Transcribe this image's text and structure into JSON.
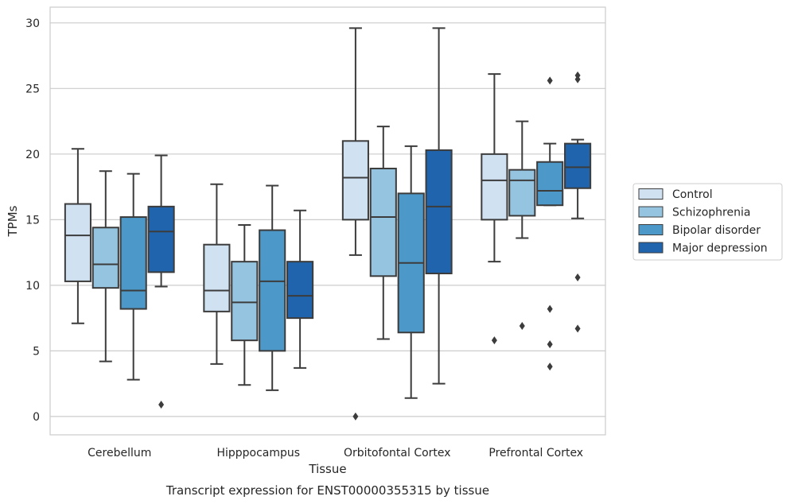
{
  "chart_data": {
    "type": "boxplot",
    "title": "",
    "caption": "Transcript expression for ENST00000355315 by tissue",
    "xlabel": "Tissue",
    "ylabel": "TPMs",
    "ylim": [
      -1.4,
      31.2
    ],
    "yticks": [
      0,
      5,
      10,
      15,
      20,
      25,
      30
    ],
    "grid": true,
    "legend_position": "right",
    "categories": [
      "Cerebellum",
      "Hipppocampus",
      "Orbitofontal Cortex",
      "Prefrontal Cortex"
    ],
    "series": [
      {
        "name": "Control",
        "color": "#d0e1f2",
        "boxes": [
          {
            "whislo": 7.1,
            "q1": 10.3,
            "median": 13.8,
            "q3": 16.2,
            "whishi": 20.4,
            "fliers": []
          },
          {
            "whislo": 4.0,
            "q1": 8.0,
            "median": 9.6,
            "q3": 13.1,
            "whishi": 17.7,
            "fliers": []
          },
          {
            "whislo": 12.3,
            "q1": 15.0,
            "median": 18.2,
            "q3": 21.0,
            "whishi": 29.6,
            "fliers": [
              0.0
            ]
          },
          {
            "whislo": 11.8,
            "q1": 15.0,
            "median": 18.0,
            "q3": 20.0,
            "whishi": 26.1,
            "fliers": [
              5.8
            ]
          }
        ]
      },
      {
        "name": "Schizophrenia",
        "color": "#94c4df",
        "boxes": [
          {
            "whislo": 4.2,
            "q1": 9.8,
            "median": 11.6,
            "q3": 14.4,
            "whishi": 18.7,
            "fliers": []
          },
          {
            "whislo": 2.4,
            "q1": 5.8,
            "median": 8.7,
            "q3": 11.8,
            "whishi": 14.6,
            "fliers": []
          },
          {
            "whislo": 5.9,
            "q1": 10.7,
            "median": 15.2,
            "q3": 18.9,
            "whishi": 22.1,
            "fliers": []
          },
          {
            "whislo": 13.6,
            "q1": 15.3,
            "median": 18.0,
            "q3": 18.8,
            "whishi": 22.5,
            "fliers": [
              6.9
            ]
          }
        ]
      },
      {
        "name": "Bipolar disorder",
        "color": "#4b98c9",
        "boxes": [
          {
            "whislo": 2.8,
            "q1": 8.2,
            "median": 9.6,
            "q3": 15.2,
            "whishi": 18.5,
            "fliers": []
          },
          {
            "whislo": 2.0,
            "q1": 5.0,
            "median": 10.3,
            "q3": 14.2,
            "whishi": 17.6,
            "fliers": []
          },
          {
            "whislo": 1.4,
            "q1": 6.4,
            "median": 11.7,
            "q3": 17.0,
            "whishi": 20.6,
            "fliers": []
          },
          {
            "whislo": 16.1,
            "q1": 16.1,
            "median": 17.2,
            "q3": 19.4,
            "whishi": 20.8,
            "fliers": [
              25.6,
              8.2,
              5.5,
              3.8
            ]
          }
        ]
      },
      {
        "name": "Major depression",
        "color": "#1f64ad",
        "boxes": [
          {
            "whislo": 9.9,
            "q1": 11.0,
            "median": 14.1,
            "q3": 16.0,
            "whishi": 19.9,
            "fliers": [
              0.9
            ]
          },
          {
            "whislo": 3.7,
            "q1": 7.5,
            "median": 9.2,
            "q3": 11.8,
            "whishi": 15.7,
            "fliers": []
          },
          {
            "whislo": 2.5,
            "q1": 10.9,
            "median": 16.0,
            "q3": 20.3,
            "whishi": 29.6,
            "fliers": []
          },
          {
            "whislo": 15.1,
            "q1": 17.4,
            "median": 19.0,
            "q3": 20.8,
            "whishi": 21.1,
            "fliers": [
              26.0,
              25.7,
              10.6,
              6.7
            ]
          }
        ]
      }
    ]
  }
}
